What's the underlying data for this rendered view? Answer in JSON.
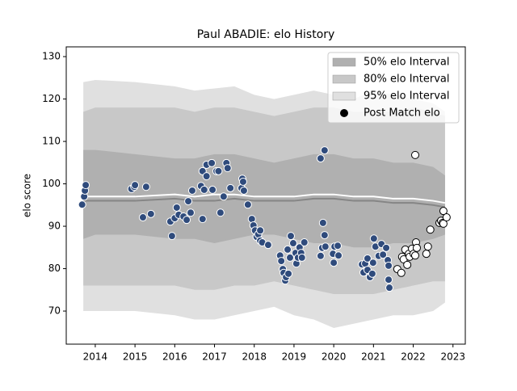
{
  "chart_data": {
    "type": "scatter",
    "title": "Paul ABADIE: elo History",
    "ylabel": "elo score",
    "xlim": [
      2013.27,
      2023.31
    ],
    "ylim": [
      62.2,
      132.3
    ],
    "xticks": [
      2014,
      2015,
      2016,
      2017,
      2018,
      2019,
      2020,
      2021,
      2022,
      2023
    ],
    "yticks": [
      70,
      80,
      90,
      100,
      110,
      120,
      130
    ],
    "grid": false,
    "legend": "upper right",
    "bands": [
      {
        "name": "50% elo Interval",
        "color": "#b0b0b0",
        "x": [
          2013.7,
          2014,
          2015,
          2016,
          2016.5,
          2017,
          2017.5,
          2018,
          2018.5,
          2019,
          2019.5,
          2020,
          2020.5,
          2021,
          2021.5,
          2022,
          2022.5,
          2022.8
        ],
        "upper": [
          108,
          108,
          107,
          106,
          106,
          107,
          107,
          106,
          105,
          106,
          107,
          107,
          106,
          106,
          105,
          105,
          104,
          102
        ],
        "lower": [
          87,
          88,
          88,
          87,
          87,
          86,
          87,
          88,
          88,
          87,
          86,
          86,
          85,
          85,
          86,
          86,
          87,
          88
        ]
      },
      {
        "name": "80% elo Interval",
        "color": "#c8c8c8",
        "x": [
          2013.7,
          2014,
          2015,
          2016,
          2016.5,
          2017,
          2017.5,
          2018,
          2018.5,
          2019,
          2019.5,
          2020,
          2020.5,
          2021,
          2021.5,
          2022,
          2022.5,
          2022.8
        ],
        "upper": [
          117,
          118,
          118,
          118,
          117,
          118,
          118,
          117,
          116,
          117,
          118,
          118,
          117,
          117,
          117,
          118,
          117,
          116
        ],
        "lower": [
          76,
          76,
          76,
          76,
          75,
          75,
          76,
          76,
          77,
          76,
          75,
          74,
          74,
          74,
          75,
          76,
          77,
          77
        ]
      },
      {
        "name": "95% elo Interval",
        "color": "#e0e0e0",
        "x": [
          2013.7,
          2014,
          2015,
          2016,
          2016.5,
          2017,
          2017.5,
          2018,
          2018.5,
          2019,
          2019.5,
          2020,
          2020.5,
          2021,
          2021.5,
          2022,
          2022.5,
          2022.8
        ],
        "upper": [
          124,
          124.5,
          124,
          123,
          122,
          122.5,
          123,
          121,
          120,
          121,
          122,
          121,
          120,
          122,
          121,
          120,
          119,
          117
        ],
        "lower": [
          70,
          70,
          70,
          69,
          68,
          68,
          69,
          70,
          71,
          69,
          68,
          66,
          67,
          68,
          69,
          69,
          70,
          72
        ]
      }
    ],
    "lines": [
      {
        "color": "#858585",
        "x": [
          2013.7,
          2014,
          2015,
          2016,
          2016.5,
          2017,
          2017.5,
          2018,
          2018.5,
          2019,
          2019.5,
          2020,
          2020.5,
          2021,
          2021.5,
          2022,
          2022.5,
          2022.8
        ],
        "values": [
          96,
          96,
          96,
          96.5,
          96,
          96,
          96.5,
          96,
          96,
          96,
          96.5,
          96.5,
          96,
          96,
          95.5,
          95.5,
          95,
          94.5
        ]
      },
      {
        "color": "#ffffff",
        "x": [
          2013.7,
          2014,
          2015,
          2016,
          2016.5,
          2017,
          2017.5,
          2018,
          2018.5,
          2019,
          2019.5,
          2020,
          2020.5,
          2021,
          2021.5,
          2022,
          2022.5,
          2022.8
        ],
        "values": [
          97,
          97,
          97,
          97.5,
          97,
          97.5,
          97.5,
          97,
          97,
          97,
          97.5,
          97.5,
          97,
          97,
          96.5,
          96.5,
          96,
          95.5
        ]
      }
    ],
    "series": [
      {
        "name": "Post Match elo",
        "color": "#2f4b7c",
        "edgecolor": "#ffffff",
        "x": [
          2013.67,
          2013.72,
          2013.74,
          2013.76,
          2014.91,
          2014.98,
          2015.0,
          2015.2,
          2015.28,
          2015.4,
          2015.89,
          2015.93,
          2016.0,
          2016.05,
          2016.1,
          2016.22,
          2016.3,
          2016.34,
          2016.4,
          2016.44,
          2016.66,
          2016.7,
          2016.7,
          2016.74,
          2016.8,
          2016.8,
          2016.93,
          2016.95,
          2017.05,
          2017.1,
          2017.15,
          2017.23,
          2017.3,
          2017.33,
          2017.4,
          2017.68,
          2017.7,
          2017.72,
          2017.74,
          2017.84,
          2017.94,
          2017.98,
          2018.02,
          2018.06,
          2018.1,
          2018.15,
          2018.15,
          2018.2,
          2018.35,
          2018.65,
          2018.68,
          2018.72,
          2018.74,
          2018.78,
          2018.8,
          2018.84,
          2018.86,
          2018.9,
          2018.92,
          2018.98,
          2019.04,
          2019.06,
          2019.1,
          2019.14,
          2019.18,
          2019.2,
          2019.26,
          2019.67,
          2019.67,
          2019.71,
          2019.73,
          2019.77,
          2019.77,
          2019.79,
          2019.98,
          2020.02,
          2020.0,
          2020.1,
          2020.12,
          2020.71,
          2020.75,
          2020.79,
          2020.85,
          2020.85,
          2020.91,
          2020.97,
          2020.99,
          2021.01,
          2021.05,
          2021.13,
          2021.2,
          2021.24,
          2021.32,
          2021.36,
          2021.38,
          2021.38,
          2021.4
        ],
        "values": [
          95.1,
          97.0,
          98.4,
          99.7,
          98.8,
          99.3,
          99.7,
          92.1,
          99.3,
          92.9,
          91.1,
          87.7,
          91.9,
          94.4,
          92.7,
          92.3,
          91.5,
          95.9,
          93.2,
          98.4,
          99.5,
          103.0,
          91.7,
          98.6,
          104.5,
          101.8,
          104.9,
          98.6,
          103.0,
          103.0,
          93.2,
          97.0,
          104.9,
          103.7,
          99.0,
          99.0,
          101.2,
          100.5,
          98.4,
          95.1,
          91.7,
          90.2,
          89.0,
          87.5,
          88.1,
          86.6,
          89.0,
          86.2,
          85.6,
          83.1,
          81.8,
          79.9,
          79.0,
          77.2,
          78.0,
          84.5,
          78.8,
          82.6,
          87.7,
          86.0,
          83.7,
          81.2,
          82.6,
          85.0,
          83.7,
          82.6,
          86.2,
          106.0,
          83.0,
          84.9,
          90.8,
          87.9,
          107.9,
          85.2,
          83.5,
          85.2,
          81.4,
          85.4,
          83.1,
          81.0,
          79.1,
          81.2,
          82.4,
          79.7,
          78.0,
          78.8,
          81.4,
          87.1,
          85.2,
          83.0,
          85.8,
          83.3,
          84.9,
          82.0,
          80.7,
          77.4,
          75.5
        ]
      },
      {
        "color": "#ffffff",
        "edgecolor": "#000000",
        "x": [
          2022.05,
          2021.6,
          2021.7,
          2021.72,
          2021.76,
          2021.8,
          2021.85,
          2021.89,
          2021.91,
          2021.97,
          2022.01,
          2022.05,
          2022.07,
          2022.09,
          2022.33,
          2022.37,
          2022.43,
          2022.66,
          2022.7,
          2022.74,
          2022.76,
          2022.76,
          2022.84
        ],
        "values": [
          106.8,
          79.9,
          79.0,
          82.8,
          82.2,
          84.5,
          80.9,
          83.5,
          82.8,
          84.7,
          83.5,
          83.1,
          86.2,
          84.9,
          83.5,
          85.2,
          89.2,
          90.8,
          91.3,
          90.8,
          93.6,
          90.6,
          92.1
        ]
      }
    ]
  }
}
